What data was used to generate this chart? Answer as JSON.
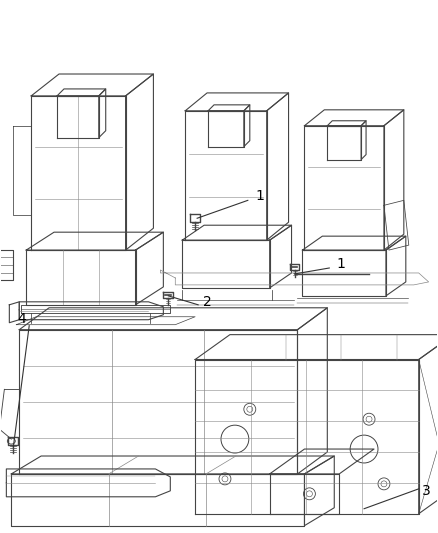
{
  "background_color": "#ffffff",
  "line_color": "#444444",
  "label_color": "#000000",
  "label_fontsize": 10,
  "fig_width": 4.38,
  "fig_height": 5.33,
  "dpi": 100
}
